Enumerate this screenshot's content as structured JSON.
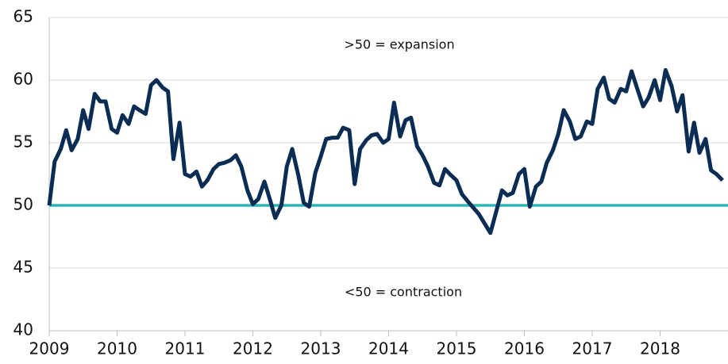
{
  "chart_data": {
    "type": "line",
    "annotations": [
      ">50 = expansion",
      "<50 = contraction"
    ],
    "x": [
      2009,
      2009.08,
      2009.17,
      2009.25,
      2009.33,
      2009.42,
      2009.5,
      2009.58,
      2009.67,
      2009.75,
      2009.83,
      2009.92,
      2010,
      2010.08,
      2010.17,
      2010.25,
      2010.33,
      2010.42,
      2010.5,
      2010.58,
      2010.67,
      2010.75,
      2010.83,
      2010.92,
      2011,
      2011.08,
      2011.17,
      2011.25,
      2011.33,
      2011.42,
      2011.5,
      2011.58,
      2011.67,
      2011.75,
      2011.83,
      2011.92,
      2012,
      2012.08,
      2012.17,
      2012.25,
      2012.33,
      2012.42,
      2012.5,
      2012.58,
      2012.67,
      2012.75,
      2012.83,
      2012.92,
      2013,
      2013.08,
      2013.17,
      2013.25,
      2013.33,
      2013.42,
      2013.5,
      2013.58,
      2013.67,
      2013.75,
      2013.83,
      2013.92,
      2014,
      2014.08,
      2014.17,
      2014.25,
      2014.33,
      2014.42,
      2014.5,
      2014.58,
      2014.67,
      2014.75,
      2014.83,
      2014.92,
      2015,
      2015.08,
      2015.17,
      2015.25,
      2015.33,
      2015.42,
      2015.5,
      2015.58,
      2015.67,
      2015.75,
      2015.83,
      2015.92,
      2016,
      2016.08,
      2016.17,
      2016.25,
      2016.33,
      2016.42,
      2016.5,
      2016.58,
      2016.67,
      2016.75,
      2016.83,
      2016.92,
      2017,
      2017.08,
      2017.17,
      2017.25,
      2017.33,
      2017.42,
      2017.5,
      2017.58,
      2017.67,
      2017.75,
      2017.83,
      2017.92,
      2018,
      2018.08,
      2018.17,
      2018.25,
      2018.33,
      2018.42,
      2018.5,
      2018.58,
      2018.67,
      2018.75,
      2018.83,
      2018.92
    ],
    "series": [
      {
        "color": "#0b2d54",
        "values": [
          50.0,
          53.5,
          54.5,
          56.0,
          54.4,
          55.3,
          57.6,
          56.1,
          58.9,
          58.3,
          58.3,
          56.1,
          55.8,
          57.2,
          56.5,
          57.9,
          57.6,
          57.3,
          59.6,
          60.0,
          59.4,
          59.1,
          53.7,
          56.6,
          52.5,
          52.3,
          52.7,
          51.5,
          52.0,
          52.9,
          53.3,
          53.4,
          53.6,
          54.0,
          53.1,
          51.2,
          50.1,
          50.5,
          51.9,
          50.5,
          49.0,
          50.0,
          53.1,
          54.5,
          52.4,
          50.2,
          49.9,
          52.6,
          53.9,
          55.3,
          55.4,
          55.4,
          56.2,
          56.0,
          51.7,
          54.5,
          55.2,
          55.6,
          55.7,
          55.0,
          55.3,
          58.2,
          55.5,
          56.8,
          57.0,
          54.7,
          54.0,
          53.1,
          51.8,
          51.6,
          52.9,
          52.4,
          52.0,
          50.9,
          50.3,
          49.8,
          49.3,
          48.5,
          47.8,
          49.4,
          51.2,
          50.8,
          51.0,
          52.5,
          52.9,
          49.9,
          51.5,
          51.9,
          53.4,
          54.4,
          55.7,
          57.6,
          56.7,
          55.3,
          55.5,
          56.7,
          56.5,
          59.3,
          60.2,
          58.5,
          58.2,
          59.3,
          59.1,
          60.7,
          59.2,
          57.9,
          58.6,
          60.0,
          58.4,
          60.8,
          59.5,
          57.5,
          58.8,
          54.3,
          56.6,
          54.2,
          55.3,
          52.8,
          52.5,
          52.0
        ]
      }
    ],
    "reference_line": {
      "value": 50,
      "color": "#2bb7b5"
    },
    "xlim": [
      2009,
      2019
    ],
    "xticks": [
      2009,
      2010,
      2011,
      2012,
      2013,
      2014,
      2015,
      2016,
      2017,
      2018
    ],
    "ylim": [
      40,
      65
    ],
    "yticks": [
      40,
      45,
      50,
      55,
      60,
      65
    ],
    "grid": true
  }
}
